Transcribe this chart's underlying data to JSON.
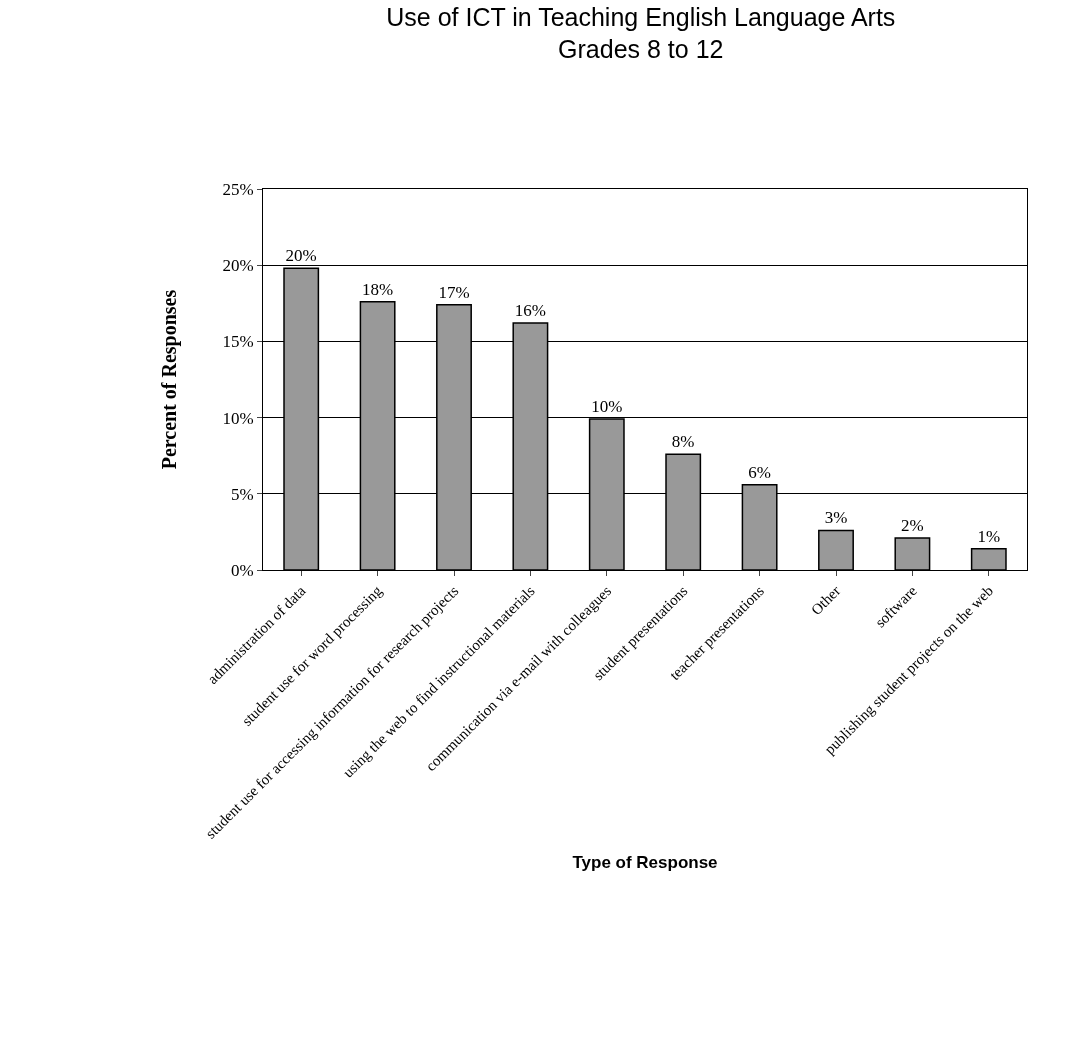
{
  "chart_data": {
    "type": "bar",
    "title": "Use of ICT in Teaching English Language Arts\nGrades 8 to 12",
    "xlabel": "Type of Response",
    "ylabel": "Percent of Responses",
    "categories": [
      "administration of data",
      "student use for word processing",
      "student use for accessing information for research projects",
      "using the web to find instructional materials",
      "communication via e-mail with colleagues",
      "student presentations",
      "teacher presentations",
      "Other",
      "software",
      "publishing student projects on the web"
    ],
    "values": [
      19.8,
      17.6,
      17.4,
      16.2,
      9.9,
      7.6,
      5.6,
      2.6,
      2.1,
      1.4
    ],
    "value_labels": [
      "20%",
      "18%",
      "17%",
      "16%",
      "10%",
      "8%",
      "6%",
      "3%",
      "2%",
      "1%"
    ],
    "color": "#999999",
    "ylim": [
      0,
      25
    ],
    "yticks": [
      {
        "value": 0,
        "label": "0%"
      },
      {
        "value": 5,
        "label": "5%"
      },
      {
        "value": 10,
        "label": "10%"
      },
      {
        "value": 15,
        "label": "15%"
      },
      {
        "value": 20,
        "label": "20%"
      },
      {
        "value": 25,
        "label": "25%"
      }
    ],
    "grid": "y",
    "legend": false
  }
}
